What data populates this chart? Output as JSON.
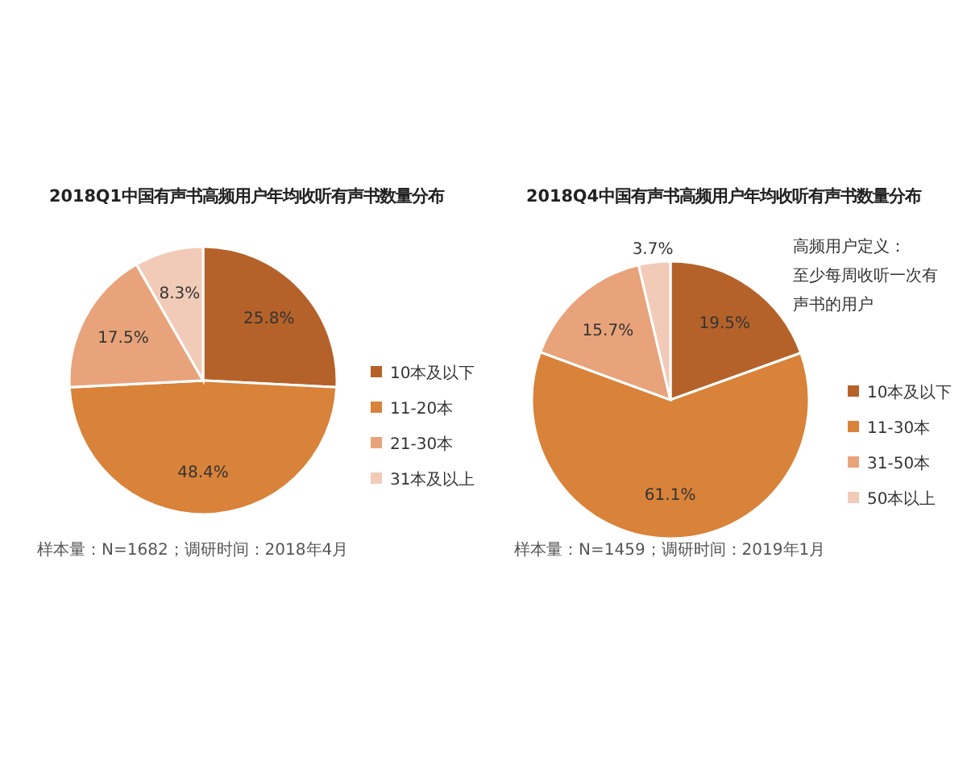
{
  "chart_data": [
    {
      "type": "pie",
      "title": "2018Q1中国有声书高频用户年均收听有声书数量分布",
      "categories": [
        "10本及以下",
        "11-20本",
        "21-30本",
        "31本及以上"
      ],
      "values": [
        25.8,
        48.4,
        17.5,
        8.3
      ],
      "value_labels": [
        "25.8%",
        "48.4%",
        "17.5%",
        "8.3%"
      ],
      "colors": [
        "#b5622a",
        "#d9823a",
        "#e8a37a",
        "#f2cbb8"
      ],
      "legend": "right",
      "annotations": [
        "样本量：N=1682；调研时间：2018年4月"
      ]
    },
    {
      "type": "pie",
      "title": "2018Q4中国有声书高频用户年均收听有声书数量分布",
      "categories": [
        "10本及以下",
        "11-30本",
        "31-50本",
        "50本以上"
      ],
      "values": [
        19.5,
        61.1,
        15.7,
        3.7
      ],
      "value_labels": [
        "19.5%",
        "61.1%",
        "15.7%",
        "3.7%"
      ],
      "colors": [
        "#b5622a",
        "#d9823a",
        "#e8a37a",
        "#f2cbb8"
      ],
      "legend": "right",
      "annotations": [
        "高频用户定义：至少每周收听一次有声书的用户",
        "样本量：N=1459；调研时间：2019年1月"
      ]
    }
  ]
}
